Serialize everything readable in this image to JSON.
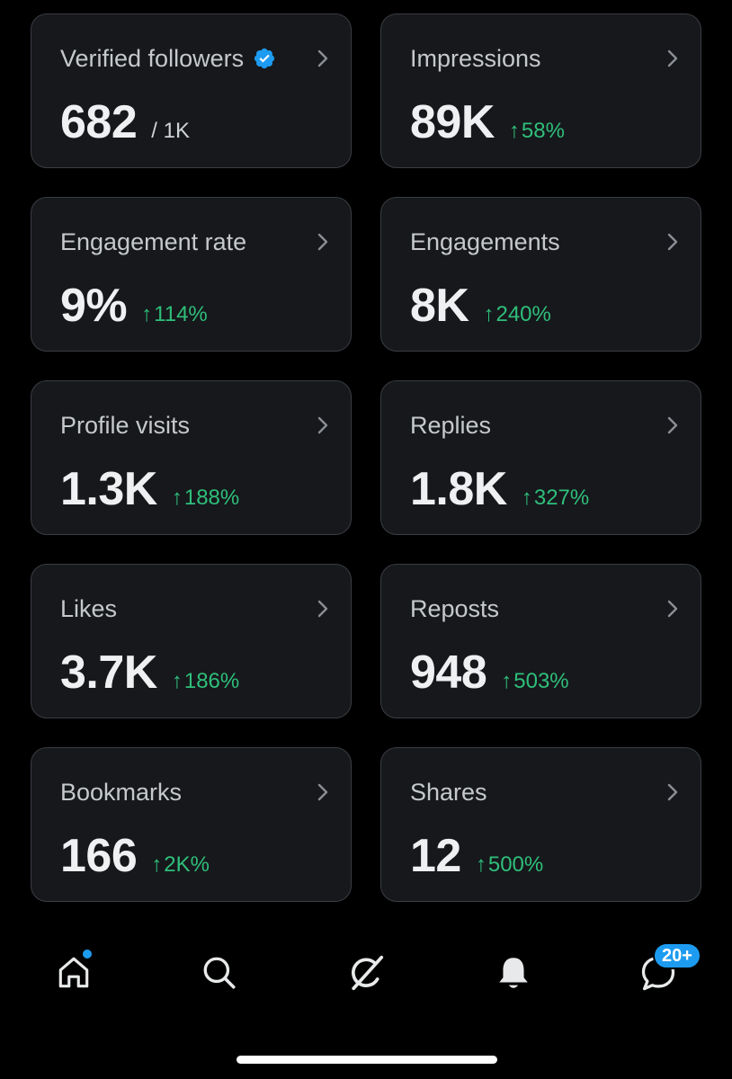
{
  "cards": [
    {
      "label": "Verified followers",
      "value": "682",
      "sub": "/ 1K",
      "delta": "",
      "verified_icon": "verified-badge-icon"
    },
    {
      "label": "Impressions",
      "value": "89K",
      "sub": "",
      "delta": "58%"
    },
    {
      "label": "Engagement rate",
      "value": "9%",
      "sub": "",
      "delta": "114%"
    },
    {
      "label": "Engagements",
      "value": "8K",
      "sub": "",
      "delta": "240%"
    },
    {
      "label": "Profile visits",
      "value": "1.3K",
      "sub": "",
      "delta": "188%"
    },
    {
      "label": "Replies",
      "value": "1.8K",
      "sub": "",
      "delta": "327%"
    },
    {
      "label": "Likes",
      "value": "3.7K",
      "sub": "",
      "delta": "186%"
    },
    {
      "label": "Reposts",
      "value": "948",
      "sub": "",
      "delta": "503%"
    },
    {
      "label": "Bookmarks",
      "value": "166",
      "sub": "",
      "delta": "2K%"
    },
    {
      "label": "Shares",
      "value": "12",
      "sub": "",
      "delta": "500%"
    }
  ],
  "delta_arrow": "↑",
  "tabbar": {
    "items": [
      {
        "name": "home",
        "icon": "home-icon",
        "has_dot": true
      },
      {
        "name": "search",
        "icon": "search-icon"
      },
      {
        "name": "grok",
        "icon": "grok-icon"
      },
      {
        "name": "notifications",
        "icon": "bell-icon"
      },
      {
        "name": "messages",
        "icon": "messages-icon",
        "badge": "20+"
      }
    ]
  },
  "colors": {
    "background": "#000000",
    "card": "#16181c",
    "card_border": "#3a3d42",
    "positive": "#2fbf7a",
    "accent": "#1d9bf0"
  }
}
